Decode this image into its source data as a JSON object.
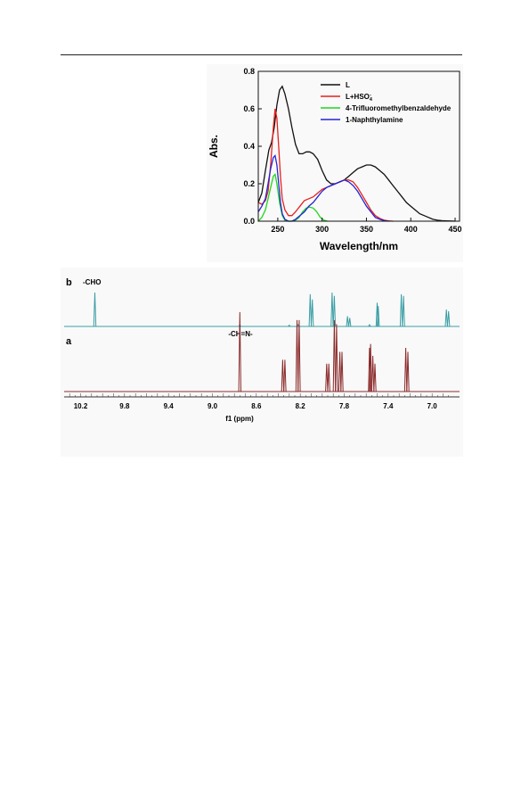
{
  "chart_data": [
    {
      "type": "line",
      "ylabel": "Abs.",
      "xlabel": "Wavelength/nm",
      "xlim": [
        228,
        455
      ],
      "ylim": [
        0,
        0.8
      ],
      "xticks": [
        "250",
        "300",
        "350",
        "400",
        "450"
      ],
      "yticks": [
        "0.0",
        "0.2",
        "0.4",
        "0.6",
        "0.8"
      ],
      "legend_position": "top-right",
      "series": [
        {
          "name": "L",
          "color": "#111111",
          "x": [
            228,
            232,
            236,
            240,
            243,
            246,
            249,
            252,
            255,
            258,
            262,
            266,
            270,
            274,
            278,
            282,
            286,
            290,
            295,
            300,
            305,
            310,
            315,
            320,
            325,
            330,
            335,
            340,
            345,
            350,
            355,
            360,
            365,
            370,
            375,
            380,
            385,
            390,
            395,
            400,
            405,
            410,
            415,
            420,
            425,
            430,
            435,
            440,
            445,
            450
          ],
          "y": [
            0.1,
            0.15,
            0.27,
            0.38,
            0.42,
            0.5,
            0.62,
            0.7,
            0.72,
            0.68,
            0.6,
            0.5,
            0.41,
            0.36,
            0.36,
            0.37,
            0.37,
            0.36,
            0.33,
            0.27,
            0.22,
            0.2,
            0.2,
            0.21,
            0.22,
            0.24,
            0.26,
            0.28,
            0.29,
            0.3,
            0.3,
            0.29,
            0.27,
            0.25,
            0.22,
            0.19,
            0.16,
            0.13,
            0.1,
            0.08,
            0.06,
            0.04,
            0.03,
            0.02,
            0.01,
            0.005,
            0.003,
            0.002,
            0.001,
            0.0
          ]
        },
        {
          "name": "L+HSO4-",
          "color": "#e8201c",
          "x": [
            228,
            232,
            236,
            239,
            242,
            245,
            247,
            249,
            251,
            253,
            255,
            258,
            262,
            266,
            270,
            275,
            280,
            285,
            290,
            295,
            300,
            305,
            310,
            315,
            320,
            325,
            330,
            335,
            340,
            345,
            350,
            355,
            360,
            365,
            370,
            375,
            380
          ],
          "y": [
            0.1,
            0.09,
            0.11,
            0.16,
            0.3,
            0.5,
            0.6,
            0.55,
            0.4,
            0.24,
            0.12,
            0.06,
            0.03,
            0.03,
            0.05,
            0.08,
            0.11,
            0.12,
            0.13,
            0.15,
            0.17,
            0.18,
            0.19,
            0.2,
            0.21,
            0.22,
            0.22,
            0.21,
            0.18,
            0.14,
            0.1,
            0.06,
            0.03,
            0.015,
            0.005,
            0.002,
            0.0
          ]
        },
        {
          "name": "4-Trifluoromethylbenzaldehyde",
          "color": "#1fd61f",
          "x": [
            228,
            232,
            236,
            239,
            242,
            245,
            247,
            249,
            252,
            255,
            258,
            262,
            266,
            270,
            274,
            278,
            282,
            286,
            290,
            294,
            298,
            302,
            306
          ],
          "y": [
            0.0,
            0.02,
            0.06,
            0.12,
            0.18,
            0.24,
            0.25,
            0.2,
            0.1,
            0.03,
            0.005,
            0.0,
            0.0,
            0.005,
            0.02,
            0.05,
            0.07,
            0.075,
            0.07,
            0.05,
            0.02,
            0.005,
            0.0
          ]
        },
        {
          "name": "1-Naphthylamine",
          "color": "#2424d8",
          "x": [
            228,
            232,
            236,
            239,
            242,
            245,
            247,
            249,
            251,
            253,
            255,
            258,
            262,
            266,
            270,
            275,
            280,
            285,
            290,
            295,
            300,
            305,
            310,
            315,
            320,
            325,
            330,
            335,
            340,
            345,
            350,
            355,
            360,
            365,
            370,
            375
          ],
          "y": [
            0.05,
            0.08,
            0.12,
            0.2,
            0.28,
            0.34,
            0.35,
            0.3,
            0.2,
            0.1,
            0.04,
            0.01,
            0.0,
            0.0,
            0.01,
            0.03,
            0.05,
            0.08,
            0.1,
            0.13,
            0.16,
            0.18,
            0.19,
            0.2,
            0.21,
            0.22,
            0.21,
            0.19,
            0.16,
            0.12,
            0.08,
            0.05,
            0.02,
            0.01,
            0.003,
            0.0
          ]
        }
      ]
    },
    {
      "type": "line",
      "xlabel": "f1 (ppm)",
      "xlim": [
        10.35,
        6.75
      ],
      "xticks": [
        "10.2",
        "9.8",
        "9.4",
        "9.0",
        "8.6",
        "8.2",
        "7.8",
        "7.4",
        "7.0"
      ],
      "x_reversed": true,
      "series": [
        {
          "name": "b",
          "color": "#3a9ea5",
          "peaks": [
            [
              10.07,
              1.0
            ],
            [
              8.75,
              0.05
            ],
            [
              8.3,
              0.04
            ],
            [
              8.22,
              0.05
            ],
            [
              8.11,
              0.95
            ],
            [
              8.09,
              0.8
            ],
            [
              7.91,
              1.0
            ],
            [
              7.89,
              0.9
            ],
            [
              7.77,
              0.3
            ],
            [
              7.75,
              0.25
            ],
            [
              7.57,
              0.05
            ],
            [
              7.5,
              0.7
            ],
            [
              7.49,
              0.6
            ],
            [
              7.28,
              0.95
            ],
            [
              7.26,
              0.9
            ],
            [
              6.87,
              0.5
            ],
            [
              6.85,
              0.45
            ]
          ]
        },
        {
          "name": "a",
          "color": "#8a2a2a",
          "peaks": [
            [
              8.75,
              1.0
            ],
            [
              8.36,
              0.4
            ],
            [
              8.34,
              0.4
            ],
            [
              8.23,
              0.9
            ],
            [
              8.21,
              0.9
            ],
            [
              7.96,
              0.35
            ],
            [
              7.94,
              0.35
            ],
            [
              7.89,
              0.9
            ],
            [
              7.87,
              0.85
            ],
            [
              7.84,
              0.5
            ],
            [
              7.82,
              0.5
            ],
            [
              7.57,
              0.55
            ],
            [
              7.56,
              0.6
            ],
            [
              7.54,
              0.45
            ],
            [
              7.52,
              0.35
            ],
            [
              7.24,
              0.55
            ],
            [
              7.22,
              0.5
            ]
          ]
        }
      ],
      "annotations": [
        "-CHO",
        "-CH=N-"
      ],
      "trace_labels": [
        "b",
        "a"
      ]
    }
  ],
  "labels": {
    "uv_legend": [
      "L",
      "L+HSO",
      "4-Trifluoromethylbenzaldehyde",
      "1-Naphthylamine"
    ],
    "hso_sub": "4",
    "hso_sup": "-"
  }
}
